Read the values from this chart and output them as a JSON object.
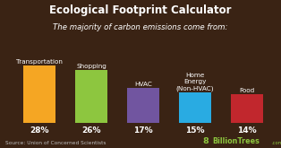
{
  "title": "Ecological Footprint Calculator",
  "subtitle": "The majority of carbon emissions come from:",
  "categories": [
    "Transportation",
    "Shopping",
    "HVAC",
    "Home\nEnergy\n(Non-HVAC)",
    "Food"
  ],
  "values": [
    28,
    26,
    17,
    15,
    14
  ],
  "bar_colors": [
    "#F5A623",
    "#8DC63F",
    "#7155A0",
    "#29ABE2",
    "#C1272D"
  ],
  "background_color": "#3A2314",
  "text_color": "#FFFFFF",
  "label_color": "#FFFFFF",
  "source_text": "Source: Union of Concerned Scientists",
  "source_color": "#BBBBBB",
  "logo_green": "#8DC63F",
  "title_fontsize": 8.5,
  "subtitle_fontsize": 6.2,
  "label_fontsize": 5.2,
  "pct_fontsize": 6.5,
  "source_fontsize": 4.2,
  "logo_fontsize": 5.8
}
